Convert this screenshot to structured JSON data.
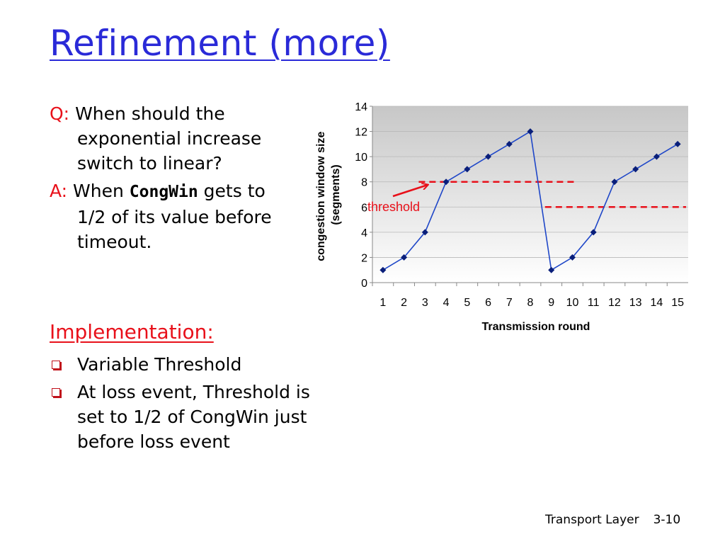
{
  "slide": {
    "title": "Refinement (more)",
    "q_label": "Q:",
    "q_text": "When should the exponential increase switch to linear?",
    "a_label": "A:",
    "a_text_pre": "When ",
    "a_code": "CongWin",
    "a_text_post": " gets to 1/2 of its value before timeout.",
    "impl_heading": "Implementation:",
    "bullets": [
      "Variable Threshold",
      "At loss event, Threshold is set to 1/2 of CongWin just before loss event"
    ],
    "footer_left": "Transport Layer",
    "footer_right": "3-10"
  },
  "colors": {
    "title": "#2a2ad8",
    "accent_red": "#e8101a",
    "series": "#0a1f7a"
  },
  "chart_data": {
    "type": "line",
    "x": [
      1,
      2,
      3,
      4,
      5,
      6,
      7,
      8,
      9,
      10,
      11,
      12,
      13,
      14,
      15
    ],
    "series": [
      {
        "values": [
          1,
          2,
          4,
          8,
          9,
          10,
          11,
          12,
          1,
          2,
          4,
          8,
          9,
          10,
          11
        ]
      }
    ],
    "thresholds": [
      {
        "y": 8,
        "x_from": 2.7,
        "x_to": 10.2
      },
      {
        "y": 6,
        "x_from": 8.7,
        "x_to": 15.4
      }
    ],
    "annotation": "threshold",
    "xlabel": "Transmission round",
    "ylabel_line1": "congestion window size",
    "ylabel_line2": "(segments)",
    "xlim": [
      0.5,
      15.5
    ],
    "ylim": [
      0,
      14
    ],
    "yticks": [
      0,
      2,
      4,
      6,
      8,
      10,
      12,
      14
    ],
    "xticks": [
      1,
      2,
      3,
      4,
      5,
      6,
      7,
      8,
      9,
      10,
      11,
      12,
      13,
      14,
      15
    ],
    "grid": true
  }
}
